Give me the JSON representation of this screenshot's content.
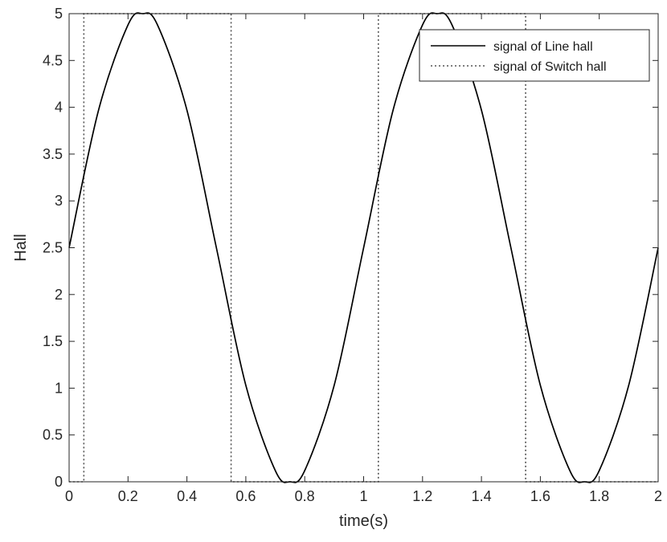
{
  "chart_data": {
    "type": "line",
    "xlabel": "time(s)",
    "ylabel": "Hall",
    "xlim": [
      0,
      2
    ],
    "ylim": [
      0,
      5
    ],
    "x_ticks": [
      "0",
      "0.2",
      "0.4",
      "0.6",
      "0.8",
      "1",
      "1.2",
      "1.4",
      "1.6",
      "1.8",
      "2"
    ],
    "y_ticks": [
      "0",
      "0.5",
      "1",
      "1.5",
      "2",
      "2.5",
      "3",
      "3.5",
      "4",
      "4.5",
      "5"
    ],
    "grid": false,
    "legend_position": "top-right",
    "series": [
      {
        "name": "signal of Line hall",
        "style": "solid",
        "color": "#000000",
        "x": [
          0,
          0.1,
          0.2,
          0.25,
          0.3,
          0.4,
          0.5,
          0.6,
          0.7,
          0.75,
          0.8,
          0.9,
          1.0,
          1.1,
          1.2,
          1.25,
          1.3,
          1.4,
          1.5,
          1.6,
          1.7,
          1.75,
          1.8,
          1.9,
          2.0
        ],
        "y": [
          2.5,
          3.97,
          4.88,
          5.0,
          4.88,
          3.97,
          2.5,
          1.03,
          0.12,
          0.0,
          0.12,
          1.03,
          2.5,
          3.97,
          4.88,
          5.0,
          4.88,
          3.97,
          2.5,
          1.03,
          0.12,
          0.0,
          0.12,
          1.03,
          2.5
        ]
      },
      {
        "name": "signal of Switch hall",
        "style": "dotted",
        "color": "#555555",
        "x": [
          0,
          0.05,
          0.05,
          0.55,
          0.55,
          1.05,
          1.05,
          1.55,
          1.55,
          2.0
        ],
        "y": [
          0,
          0,
          5,
          5,
          0,
          0,
          5,
          5,
          0,
          0
        ]
      }
    ]
  }
}
